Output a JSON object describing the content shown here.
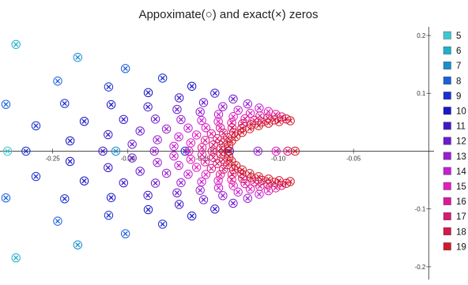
{
  "chart_data": {
    "type": "scatter",
    "title": "Appoximate(○) and exact(×) zeros",
    "xlabel": "",
    "ylabel": "",
    "xlim": [
      -0.285,
      0.0035
    ],
    "ylim": [
      -0.222,
      0.215
    ],
    "x_ticks": [
      -0.25,
      -0.2,
      -0.15,
      -0.1,
      -0.05
    ],
    "x_tick_labels": [
      "-0.25",
      "-0.20",
      "-0.15",
      "-0.10",
      "-0.05"
    ],
    "y_ticks": [
      0.2,
      0.1,
      -0.1,
      -0.2
    ],
    "y_tick_labels": [
      "0.2",
      "0.1",
      "-0.1",
      "-0.2"
    ],
    "grid": false,
    "legend_position": "right",
    "marker_approx": "circle",
    "marker_exact": "x",
    "series": [
      {
        "name": "5",
        "color": "#3cc8d2"
      },
      {
        "name": "6",
        "color": "#1fb0cc"
      },
      {
        "name": "7",
        "color": "#1a8ed0"
      },
      {
        "name": "8",
        "color": "#1a60d8"
      },
      {
        "name": "9",
        "color": "#1a30d0"
      },
      {
        "name": "10",
        "color": "#1a18c4"
      },
      {
        "name": "11",
        "color": "#3d1ac8"
      },
      {
        "name": "12",
        "color": "#6a1ccc"
      },
      {
        "name": "13",
        "color": "#981ed0"
      },
      {
        "name": "14",
        "color": "#c41fd2"
      },
      {
        "name": "15",
        "color": "#e01fc0"
      },
      {
        "name": "16",
        "color": "#dc1a98"
      },
      {
        "name": "17",
        "color": "#d81a70"
      },
      {
        "name": "18",
        "color": "#d4184c"
      },
      {
        "name": "19",
        "color": "#d01a2a"
      }
    ]
  }
}
